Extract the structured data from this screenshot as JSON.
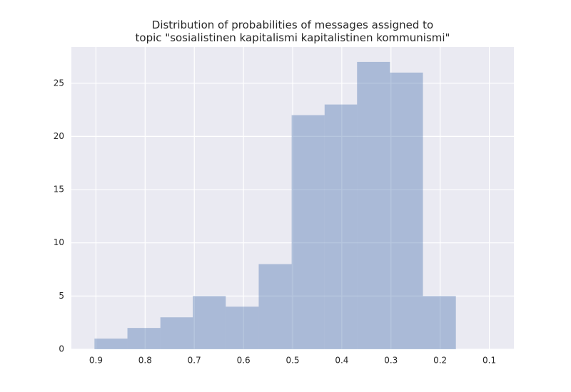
{
  "chart_data": {
    "type": "histogram",
    "title": "Distribution of probabilities of messages assigned to\ntopic \"sosialistinen kapitalismi kapitalistinen kommunismi\"",
    "bins": [
      0.168,
      0.235,
      0.302,
      0.369,
      0.435,
      0.502,
      0.569,
      0.636,
      0.703,
      0.769,
      0.836,
      0.903
    ],
    "values": [
      5,
      26,
      27,
      23,
      22,
      8,
      4,
      5,
      3,
      2,
      1
    ],
    "color": "#4c72b0",
    "opacity": 0.4,
    "xlim": [
      0.95,
      0.05
    ],
    "xticks": [
      0.9,
      0.8,
      0.7,
      0.6,
      0.5,
      0.4,
      0.3,
      0.2,
      0.1
    ],
    "ylim": [
      0,
      28.4
    ],
    "yticks": [
      0,
      5,
      10,
      15,
      20,
      25
    ],
    "grid": true
  }
}
